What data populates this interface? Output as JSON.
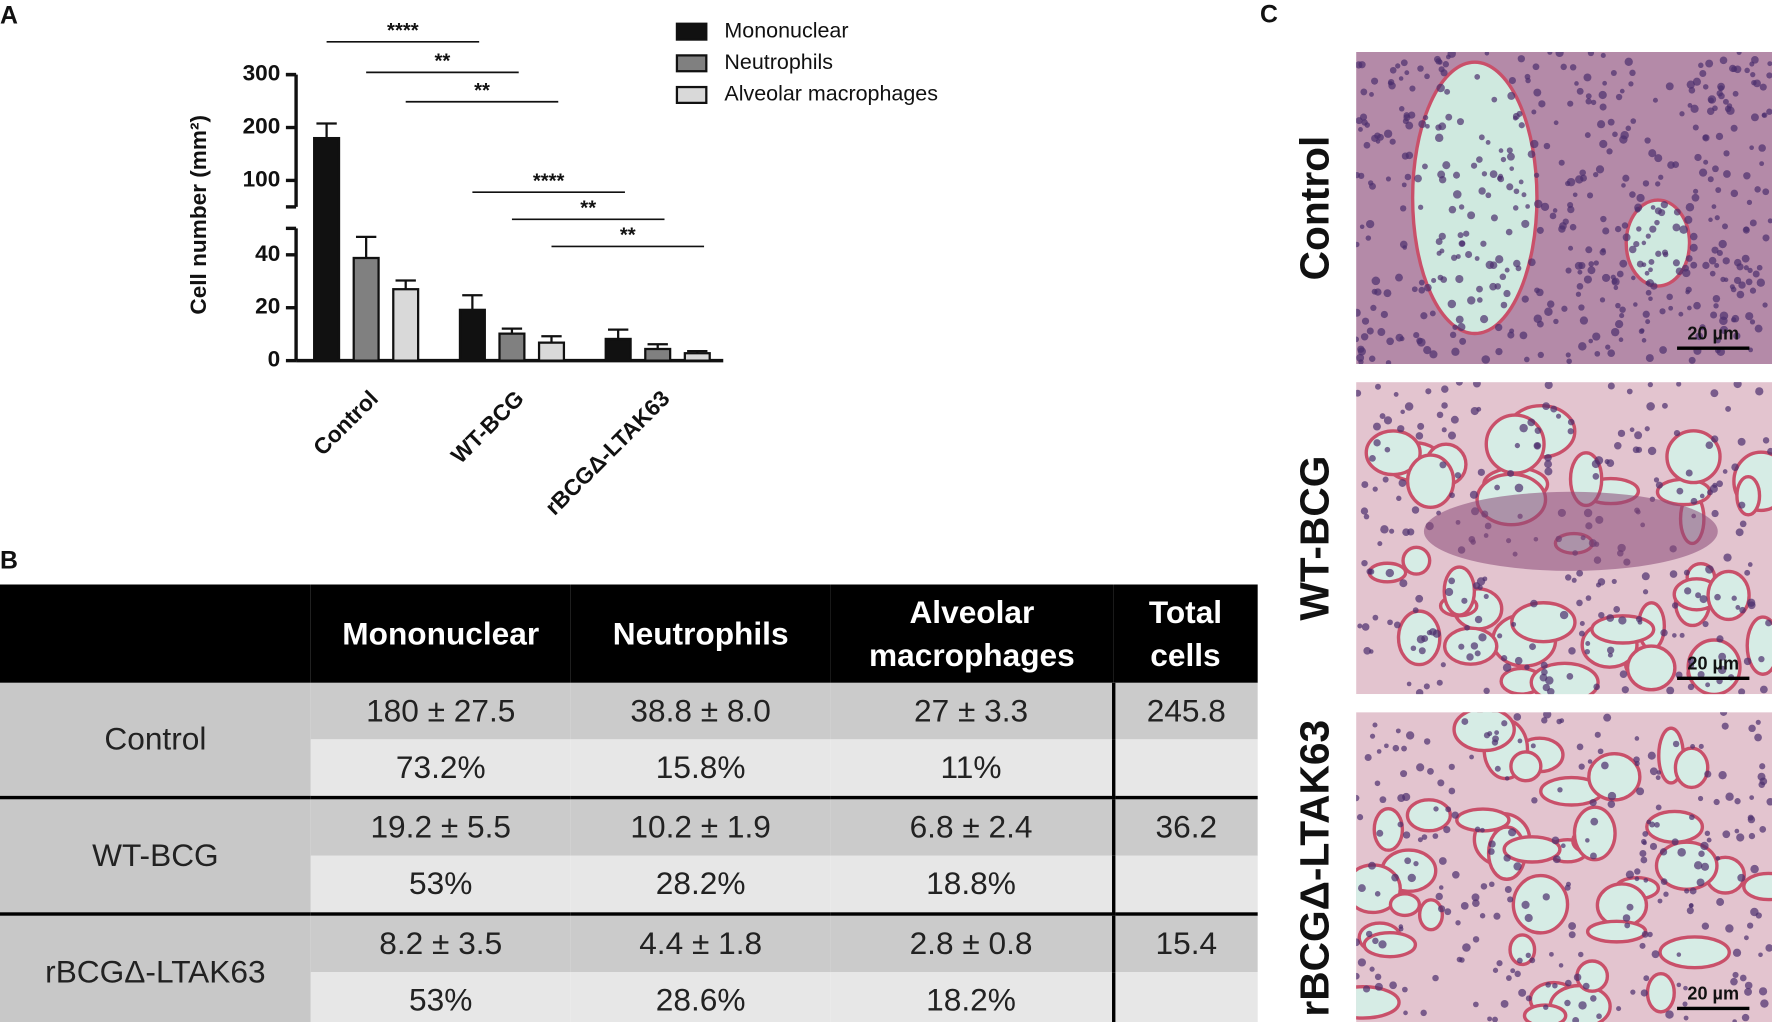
{
  "panel_labels": [
    "A",
    "B",
    "C"
  ],
  "chart_data": {
    "type": "bar",
    "y_label": "Cell number (mm²)",
    "categories": [
      "Control",
      "WT-BCG",
      "rBCGΔ-LTAK63"
    ],
    "y_segments": [
      {
        "ylim": [
          0,
          50
        ],
        "yticks": [
          0,
          20,
          40
        ]
      },
      {
        "ylim": [
          50,
          300
        ],
        "yticks": [
          100,
          200,
          300
        ]
      }
    ],
    "series": [
      {
        "name": "Mononuclear",
        "color": "#111111",
        "values": [
          180,
          19.2,
          8.2
        ],
        "errors": [
          27.5,
          5.5,
          3.5
        ]
      },
      {
        "name": "Neutrophils",
        "color": "#808080",
        "values": [
          38.8,
          10.2,
          4.4
        ],
        "errors": [
          8.0,
          1.9,
          1.8
        ]
      },
      {
        "name": "Alveolar macrophages",
        "color": "#d9d9d9",
        "values": [
          27,
          6.8,
          2.8
        ],
        "errors": [
          3.3,
          2.4,
          0.8
        ]
      }
    ],
    "significance": [
      "****",
      "**",
      "**",
      "****",
      "**",
      "**"
    ]
  },
  "table": {
    "header": [
      "Mononuclear",
      "Neutrophils",
      "Alveolar macrophages",
      "Total cells"
    ],
    "rows": [
      {
        "label": "Control",
        "values": [
          "180 ± 27.5",
          "38.8 ± 8.0",
          "27 ± 3.3"
        ],
        "percentages": [
          "73.2%",
          "15.8%",
          "11%"
        ],
        "total": "245.8"
      },
      {
        "label": "WT-BCG",
        "values": [
          "19.2 ± 5.5",
          "10.2 ± 1.9",
          "6.8 ± 2.4"
        ],
        "percentages": [
          "53%",
          "28.2%",
          "18.8%"
        ],
        "total": "36.2"
      },
      {
        "label": "rBCGΔ-LTAK63",
        "values": [
          "8.2 ± 3.5",
          "4.4 ± 1.8",
          "2.8 ± 0.8"
        ],
        "percentages": [
          "53%",
          "28.6%",
          "18.2%"
        ],
        "total": "15.4"
      }
    ]
  },
  "images": [
    {
      "label": "Control",
      "scale_bar": "20 µm"
    },
    {
      "label": "WT-BCG",
      "scale_bar": "20 µm"
    },
    {
      "label": "rBCGΔ-LTAK63",
      "scale_bar": "20 µm"
    }
  ]
}
